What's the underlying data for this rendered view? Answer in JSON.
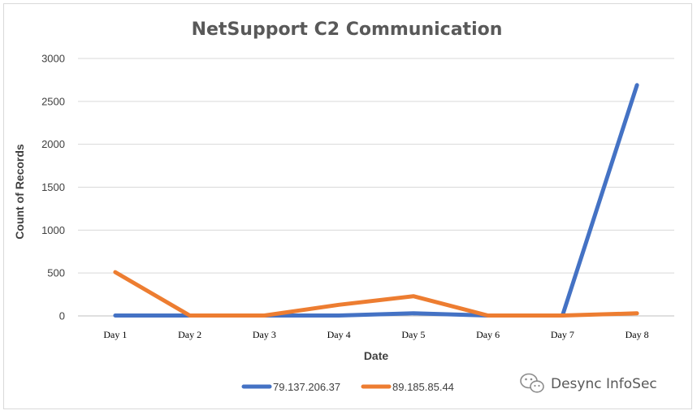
{
  "chart_data": {
    "type": "line",
    "title": "NetSupport C2 Communication",
    "xlabel": "Date",
    "ylabel": "Count of Records",
    "categories": [
      "Day 1",
      "Day 2",
      "Day 3",
      "Day 4",
      "Day 5",
      "Day 6",
      "Day 7",
      "Day 8"
    ],
    "ylim": [
      0,
      3000
    ],
    "yticks": [
      0,
      500,
      1000,
      1500,
      2000,
      2500,
      3000
    ],
    "grid": true,
    "legend_position": "bottom",
    "series": [
      {
        "name": "79.137.206.37",
        "color": "#4472c4",
        "values": [
          5,
          5,
          5,
          5,
          30,
          5,
          5,
          2690
        ]
      },
      {
        "name": "89.185.85.44",
        "color": "#ed7d31",
        "values": [
          510,
          5,
          5,
          130,
          230,
          5,
          5,
          30
        ]
      }
    ]
  },
  "watermark": {
    "icon": "wechat-icon",
    "text": "Desync InfoSec"
  }
}
